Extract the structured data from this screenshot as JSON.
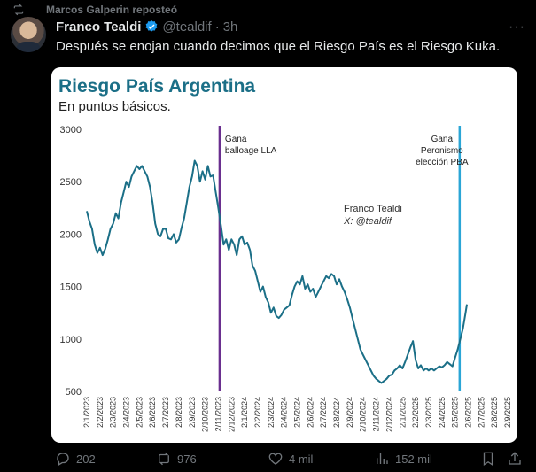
{
  "repost": {
    "text": "Marcos Galperin reposteó",
    "icon": "repost-icon"
  },
  "author": {
    "name": "Franco Tealdi",
    "handle": "@tealdif",
    "dot": "·",
    "time": "3h",
    "verified_color": "#1d9bf0"
  },
  "tweet": {
    "text": "Después se enojan cuando decimos que el Riesgo País es el Riesgo Kuka."
  },
  "chart_data": {
    "type": "line",
    "title": "Riesgo País Argentina",
    "subtitle": "En puntos básicos.",
    "watermark": [
      "Franco Tealdi",
      "X: @tealdif"
    ],
    "ylim": [
      500,
      3000
    ],
    "yticks": [
      "500",
      "1000",
      "1500",
      "2000",
      "2500",
      "3000"
    ],
    "x_labels": [
      "2/1/2023",
      "2/2/2023",
      "2/3/2023",
      "2/4/2023",
      "2/5/2023",
      "2/6/2023",
      "2/7/2023",
      "2/8/2023",
      "2/9/2023",
      "2/10/2023",
      "2/11/2023",
      "2/12/2023",
      "2/1/2024",
      "2/2/2024",
      "2/3/2024",
      "2/4/2024",
      "2/5/2024",
      "2/6/2024",
      "2/7/2024",
      "2/8/2024",
      "2/9/2024",
      "2/10/2024",
      "2/11/2024",
      "2/12/2024",
      "2/1/2025",
      "2/2/2025",
      "2/3/2025",
      "2/4/2025",
      "2/5/2025",
      "2/6/2025",
      "2/7/2025",
      "2/8/2025",
      "2/9/2025"
    ],
    "series": [
      {
        "color": "#1b6f87",
        "points": [
          [
            0,
            2220
          ],
          [
            0.2,
            2120
          ],
          [
            0.4,
            2050
          ],
          [
            0.6,
            1900
          ],
          [
            0.8,
            1820
          ],
          [
            1.0,
            1870
          ],
          [
            1.2,
            1800
          ],
          [
            1.4,
            1860
          ],
          [
            1.6,
            1950
          ],
          [
            1.8,
            2050
          ],
          [
            2.0,
            2100
          ],
          [
            2.2,
            2200
          ],
          [
            2.4,
            2150
          ],
          [
            2.6,
            2300
          ],
          [
            2.8,
            2400
          ],
          [
            3.0,
            2500
          ],
          [
            3.2,
            2450
          ],
          [
            3.4,
            2550
          ],
          [
            3.6,
            2600
          ],
          [
            3.8,
            2650
          ],
          [
            4.0,
            2620
          ],
          [
            4.2,
            2650
          ],
          [
            4.4,
            2600
          ],
          [
            4.6,
            2550
          ],
          [
            4.8,
            2450
          ],
          [
            5.0,
            2300
          ],
          [
            5.2,
            2100
          ],
          [
            5.4,
            2000
          ],
          [
            5.6,
            1980
          ],
          [
            5.8,
            2050
          ],
          [
            6.0,
            2050
          ],
          [
            6.2,
            1960
          ],
          [
            6.4,
            1950
          ],
          [
            6.6,
            2000
          ],
          [
            6.8,
            1920
          ],
          [
            7.0,
            1950
          ],
          [
            7.2,
            2060
          ],
          [
            7.4,
            2150
          ],
          [
            7.6,
            2300
          ],
          [
            7.8,
            2450
          ],
          [
            8.0,
            2550
          ],
          [
            8.2,
            2700
          ],
          [
            8.4,
            2650
          ],
          [
            8.6,
            2500
          ],
          [
            8.8,
            2600
          ],
          [
            9.0,
            2520
          ],
          [
            9.2,
            2650
          ],
          [
            9.4,
            2550
          ],
          [
            9.6,
            2560
          ],
          [
            9.8,
            2400
          ],
          [
            10.0,
            2250
          ],
          [
            10.2,
            2080
          ],
          [
            10.4,
            1900
          ],
          [
            10.6,
            1950
          ],
          [
            10.8,
            1850
          ],
          [
            11.0,
            1950
          ],
          [
            11.2,
            1900
          ],
          [
            11.4,
            1800
          ],
          [
            11.6,
            1950
          ],
          [
            11.8,
            1980
          ],
          [
            12.0,
            1900
          ],
          [
            12.2,
            1920
          ],
          [
            12.4,
            1850
          ],
          [
            12.6,
            1700
          ],
          [
            12.8,
            1650
          ],
          [
            13.0,
            1550
          ],
          [
            13.2,
            1450
          ],
          [
            13.4,
            1500
          ],
          [
            13.6,
            1400
          ],
          [
            13.8,
            1350
          ],
          [
            14.0,
            1250
          ],
          [
            14.2,
            1300
          ],
          [
            14.4,
            1220
          ],
          [
            14.6,
            1200
          ],
          [
            14.8,
            1230
          ],
          [
            15.0,
            1280
          ],
          [
            15.2,
            1300
          ],
          [
            15.4,
            1320
          ],
          [
            15.6,
            1420
          ],
          [
            15.8,
            1500
          ],
          [
            16.0,
            1550
          ],
          [
            16.2,
            1520
          ],
          [
            16.4,
            1600
          ],
          [
            16.6,
            1480
          ],
          [
            16.8,
            1520
          ],
          [
            17.0,
            1450
          ],
          [
            17.2,
            1480
          ],
          [
            17.4,
            1400
          ],
          [
            17.6,
            1450
          ],
          [
            17.8,
            1500
          ],
          [
            18.0,
            1550
          ],
          [
            18.2,
            1600
          ],
          [
            18.4,
            1580
          ],
          [
            18.6,
            1620
          ],
          [
            18.8,
            1600
          ],
          [
            19.0,
            1520
          ],
          [
            19.2,
            1570
          ],
          [
            19.4,
            1500
          ],
          [
            19.6,
            1450
          ],
          [
            19.8,
            1380
          ],
          [
            20.0,
            1300
          ],
          [
            20.2,
            1200
          ],
          [
            20.4,
            1100
          ],
          [
            20.6,
            1000
          ],
          [
            20.8,
            900
          ],
          [
            21.0,
            850
          ],
          [
            21.2,
            800
          ],
          [
            21.4,
            750
          ],
          [
            21.6,
            700
          ],
          [
            21.8,
            650
          ],
          [
            22.0,
            620
          ],
          [
            22.2,
            600
          ],
          [
            22.4,
            580
          ],
          [
            22.6,
            600
          ],
          [
            22.8,
            620
          ],
          [
            23.0,
            650
          ],
          [
            23.2,
            660
          ],
          [
            23.4,
            700
          ],
          [
            23.6,
            720
          ],
          [
            23.8,
            750
          ],
          [
            24.0,
            720
          ],
          [
            24.2,
            780
          ],
          [
            24.4,
            850
          ],
          [
            24.6,
            920
          ],
          [
            24.8,
            980
          ],
          [
            25.0,
            800
          ],
          [
            25.2,
            720
          ],
          [
            25.4,
            750
          ],
          [
            25.6,
            700
          ],
          [
            25.8,
            720
          ],
          [
            26.0,
            700
          ],
          [
            26.2,
            720
          ],
          [
            26.4,
            700
          ],
          [
            26.6,
            720
          ],
          [
            26.8,
            740
          ],
          [
            27.0,
            730
          ],
          [
            27.2,
            750
          ],
          [
            27.4,
            780
          ],
          [
            27.6,
            760
          ],
          [
            27.8,
            740
          ],
          [
            28.0,
            820
          ],
          [
            28.2,
            900
          ],
          [
            28.4,
            1000
          ],
          [
            28.6,
            1100
          ],
          [
            28.8,
            1250
          ],
          [
            28.9,
            1330
          ]
        ]
      }
    ],
    "annotations": [
      {
        "lines": [
          "Gana",
          "balloage LLA"
        ],
        "x": 10.1,
        "color": "#6a2f8f"
      },
      {
        "lines": [
          "Gana",
          "Peronismo",
          "elección PBA"
        ],
        "x": 28.35,
        "color": "#2aa6d6"
      }
    ]
  },
  "actions": {
    "replies": {
      "icon": "reply-icon",
      "count": "202"
    },
    "reposts": {
      "icon": "repost-icon",
      "count": "976",
      "color": "#71767b"
    },
    "likes": {
      "icon": "heart-icon",
      "count": "4 mil"
    },
    "views": {
      "icon": "views-icon",
      "count": "152 mil"
    },
    "bookmark": {
      "icon": "bookmark-icon"
    },
    "share": {
      "icon": "share-icon"
    }
  }
}
